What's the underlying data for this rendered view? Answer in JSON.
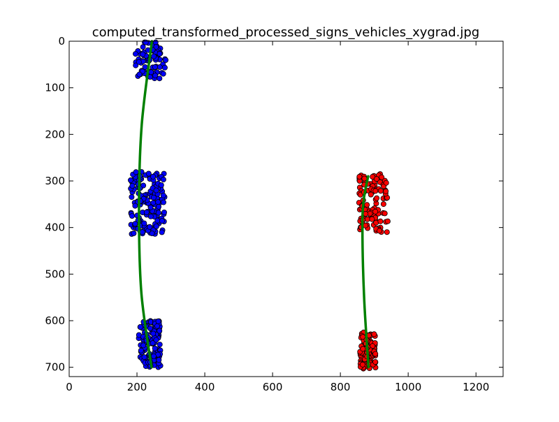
{
  "chart_data": {
    "type": "scatter",
    "title": "computed_transformed_processed_signs_vehicles_xygrad.jpg",
    "xlabel": "",
    "ylabel": "",
    "xlim": [
      0,
      1280
    ],
    "ylim": [
      720,
      0
    ],
    "x_ticks": [
      0,
      200,
      400,
      600,
      800,
      1000,
      1200
    ],
    "y_ticks": [
      0,
      100,
      200,
      300,
      400,
      500,
      600,
      700
    ],
    "grid": false,
    "legend": "none",
    "scatter_series": [
      {
        "color": "#0000ff",
        "clusters": [
          {
            "x_range": [
              195,
              285
            ],
            "y_range": [
              2,
              80
            ],
            "point_count": 80
          },
          {
            "x_range": [
              180,
              282
            ],
            "y_range": [
              280,
              415
            ],
            "point_count": 150
          },
          {
            "x_range": [
              205,
              270
            ],
            "y_range": [
              600,
              700
            ],
            "point_count": 120
          }
        ]
      },
      {
        "color": "#ff0000",
        "clusters": [
          {
            "x_range": [
              855,
              940
            ],
            "y_range": [
              285,
              415
            ],
            "point_count": 110
          },
          {
            "x_range": [
              858,
              905
            ],
            "y_range": [
              625,
              705
            ],
            "point_count": 100
          }
        ]
      }
    ],
    "fit_lines": [
      {
        "color": "#008000",
        "x": [
          244,
          214,
          206,
          213,
          243
        ],
        "y": [
          0,
          180,
          360,
          540,
          700
        ]
      },
      {
        "color": "#008000",
        "x": [
          882,
          869,
          865,
          870,
          883
        ],
        "y": [
          290,
          340,
          400,
          550,
          700
        ]
      }
    ]
  }
}
